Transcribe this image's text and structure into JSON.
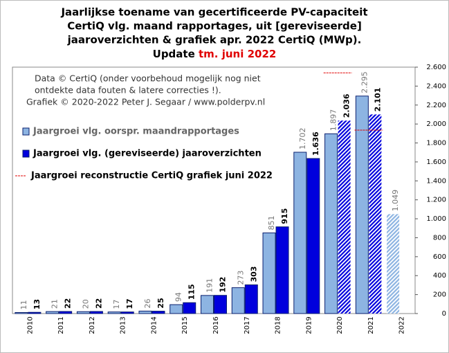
{
  "chart_data": {
    "type": "bar",
    "title": [
      "Jaarlijkse toename van gecertificeerde PV-capaciteit",
      "CertiQ vlg. maand rapportages, uit [gereviseerde]",
      "jaaroverzichten & grafiek apr. 2022 CertiQ (MWp).",
      "Update"
    ],
    "title_highlight": "tm. juni 2022",
    "title_highlight_color": "#e00000",
    "annotations": [
      "Data © CertiQ (onder voorbehoud mogelijk nog niet",
      "ontdekte data fouten & latere correcties !).",
      "Grafiek © 2020-2022 Peter J. Segaar / www.polderpv.nl"
    ],
    "categories": [
      "2010",
      "2011",
      "2012",
      "2013",
      "2014",
      "2015",
      "2016",
      "2017",
      "2018",
      "2019",
      "2020",
      "2021",
      "2022"
    ],
    "series": [
      {
        "name": "Jaargroei vlg. oorspr. maandrapportages",
        "type": "bar",
        "color": "#8db4e2",
        "values": [
          11,
          21,
          20,
          17,
          26,
          94,
          191,
          273,
          851,
          1702,
          1897,
          2295,
          1049
        ],
        "value_labels": [
          "11",
          "21",
          "20",
          "17",
          "26",
          "94",
          "191",
          "273",
          "851",
          "1.702",
          "1.897",
          "2.295",
          "1.049"
        ],
        "patterns": [
          "solid",
          "solid",
          "solid",
          "solid",
          "solid",
          "solid",
          "solid",
          "solid",
          "solid",
          "solid",
          "solid",
          "solid",
          "hatched"
        ]
      },
      {
        "name": "Jaargroei vlg. (gereviseerde) jaaroverzichten",
        "type": "bar",
        "color": "#0000dd",
        "values": [
          13,
          22,
          22,
          17,
          25,
          115,
          192,
          303,
          915,
          1636,
          2036,
          2101,
          null
        ],
        "value_labels": [
          "13",
          "22",
          "22",
          "17",
          "25",
          "115",
          "192",
          "303",
          "915",
          "1.636",
          "2.036",
          "2.101",
          null
        ],
        "patterns": [
          "solid",
          "solid",
          "solid",
          "solid",
          "solid",
          "solid",
          "solid",
          "solid",
          "solid",
          "solid",
          "hatched",
          "hatched",
          "solid"
        ]
      },
      {
        "name": "Jaargroei reconstructie CertiQ grafiek juni 2022",
        "type": "line",
        "color": "#e00000",
        "values": [
          null,
          null,
          null,
          null,
          null,
          null,
          null,
          null,
          null,
          null,
          2540,
          1935,
          null
        ]
      }
    ],
    "ylim": [
      0,
      2600
    ],
    "yticks": [
      0,
      200,
      400,
      600,
      800,
      {
        "value": 1000,
        "label": "1.000"
      },
      {
        "value": 1200,
        "label": "1.200"
      },
      {
        "value": 1400,
        "label": "1.400"
      },
      {
        "value": 1600,
        "label": "1.600"
      },
      {
        "value": 1800,
        "label": "1.800"
      },
      {
        "value": 2000,
        "label": "2.000"
      },
      {
        "value": 2200,
        "label": "2.200"
      },
      {
        "value": 2400,
        "label": "2.400"
      },
      {
        "value": 2600,
        "label": "2.600"
      }
    ],
    "y_axis_side": "right",
    "grid": false
  }
}
